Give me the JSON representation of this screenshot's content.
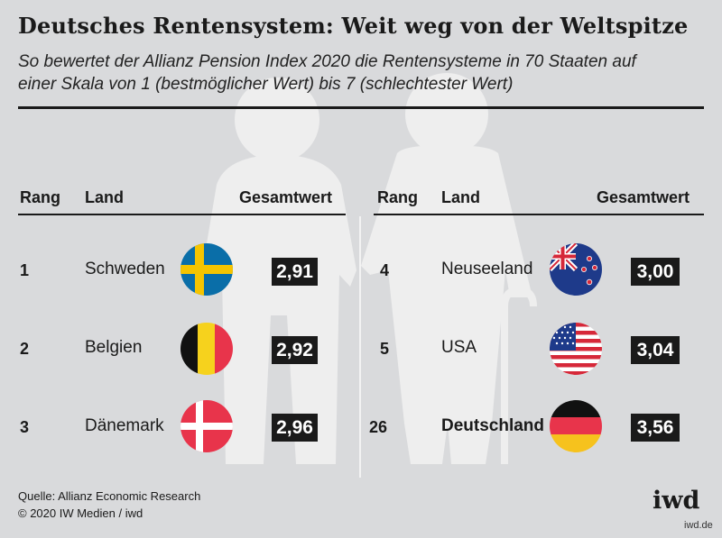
{
  "title": "Deutsches Rentensystem: Weit weg von der Weltspitze",
  "subtitle_line1": "So bewertet der Allianz Pension Index 2020 die Rentensysteme in 70 Staaten auf",
  "subtitle_line2": "einer Skala von 1 (bestmöglicher Wert) bis 7 (schlechtester Wert)",
  "headers": {
    "rank": "Rang",
    "country": "Land",
    "score": "Gesamtwert"
  },
  "rows_left": [
    {
      "rank": "1",
      "country": "Schweden",
      "score": "2,91",
      "flag": "sweden-flag"
    },
    {
      "rank": "2",
      "country": "Belgien",
      "score": "2,92",
      "flag": "belgium-flag"
    },
    {
      "rank": "3",
      "country": "Dänemark",
      "score": "2,96",
      "flag": "denmark-flag"
    }
  ],
  "rows_right": [
    {
      "rank": "4",
      "country": "Neuseeland",
      "score": "3,00",
      "flag": "new-zealand-flag"
    },
    {
      "rank": "5",
      "country": "USA",
      "score": "3,04",
      "flag": "usa-flag"
    },
    {
      "rank": "26",
      "country": "Deutschland",
      "score": "3,56",
      "flag": "germany-flag"
    }
  ],
  "source_line1": "Quelle: Allianz Economic Research",
  "source_line2": "© 2020 IW Medien / iwd",
  "logo": "iwd",
  "url": "iwd.de",
  "colors": {
    "background": "#d9dadc",
    "figure": "#f0f0f0",
    "score_box": "#1a1a1a",
    "score_text": "#ffffff"
  },
  "chart_data": {
    "type": "table",
    "columns": [
      "Rang",
      "Land",
      "Gesamtwert"
    ],
    "rows": [
      [
        "1",
        "Schweden",
        2.91
      ],
      [
        "2",
        "Belgien",
        2.92
      ],
      [
        "3",
        "Dänemark",
        2.96
      ],
      [
        "4",
        "Neuseeland",
        3.0
      ],
      [
        "5",
        "USA",
        3.04
      ],
      [
        "26",
        "Deutschland",
        3.56
      ]
    ]
  }
}
